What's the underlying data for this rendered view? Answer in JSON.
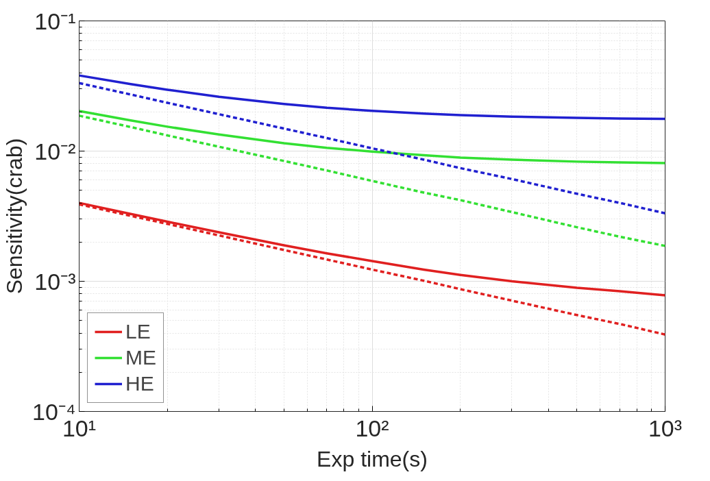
{
  "chart_data": {
    "type": "line",
    "xlabel": "Exp time(s)",
    "ylabel": "Sensitivity(crab)",
    "log": "xy",
    "grid": true,
    "legend": "bottom left",
    "xlim": [
      10,
      1000
    ],
    "ylim": [
      0.0001,
      0.1
    ],
    "xticks": [
      {
        "value": 10,
        "label": "10¹"
      },
      {
        "value": 100,
        "label": "10²"
      },
      {
        "value": 1000,
        "label": "10³"
      }
    ],
    "yticks": [
      {
        "value": 0.0001,
        "label": "10⁻⁴"
      },
      {
        "value": 0.001,
        "label": "10⁻³"
      },
      {
        "value": 0.01,
        "label": "10⁻²"
      },
      {
        "value": 0.1,
        "label": "10⁻¹"
      }
    ],
    "x": [
      10,
      15,
      20,
      30,
      50,
      70,
      100,
      150,
      200,
      300,
      500,
      700,
      1000
    ],
    "series": [
      {
        "name": "LE",
        "color": "#e02020",
        "line_style": "solid",
        "values": [
          0.004,
          0.00329,
          0.00287,
          0.00238,
          0.00189,
          0.00164,
          0.00143,
          0.00123,
          0.00112,
          0.001,
          0.00089,
          0.00084,
          0.00078
        ]
      },
      {
        "name": "ME",
        "color": "#33e033",
        "line_style": "solid",
        "values": [
          0.0203,
          0.0172,
          0.0154,
          0.0134,
          0.0115,
          0.0106,
          0.0099,
          0.0093,
          0.0089,
          0.0086,
          0.0083,
          0.0082,
          0.0081
        ]
      },
      {
        "name": "HE",
        "color": "#2020d0",
        "line_style": "solid",
        "values": [
          0.0381,
          0.0327,
          0.0296,
          0.0261,
          0.023,
          0.0215,
          0.0204,
          0.0194,
          0.0189,
          0.0184,
          0.018,
          0.0178,
          0.0177
        ]
      },
      {
        "color": "#e02020",
        "line_style": "dashed",
        "values": [
          0.0039,
          0.00318,
          0.00276,
          0.00225,
          0.00174,
          0.00147,
          0.00123,
          0.00101,
          0.00087,
          0.00071,
          0.00055,
          0.00047,
          0.00039
        ]
      },
      {
        "color": "#33e033",
        "line_style": "dashed",
        "values": [
          0.0187,
          0.0153,
          0.0132,
          0.0108,
          0.0084,
          0.0071,
          0.0059,
          0.0048,
          0.0042,
          0.0034,
          0.0026,
          0.0022,
          0.00187
        ]
      },
      {
        "color": "#2020d0",
        "line_style": "dashed",
        "values": [
          0.0333,
          0.0272,
          0.0235,
          0.0192,
          0.0149,
          0.0126,
          0.0105,
          0.0086,
          0.0074,
          0.0061,
          0.0047,
          0.004,
          0.00333
        ]
      }
    ]
  }
}
